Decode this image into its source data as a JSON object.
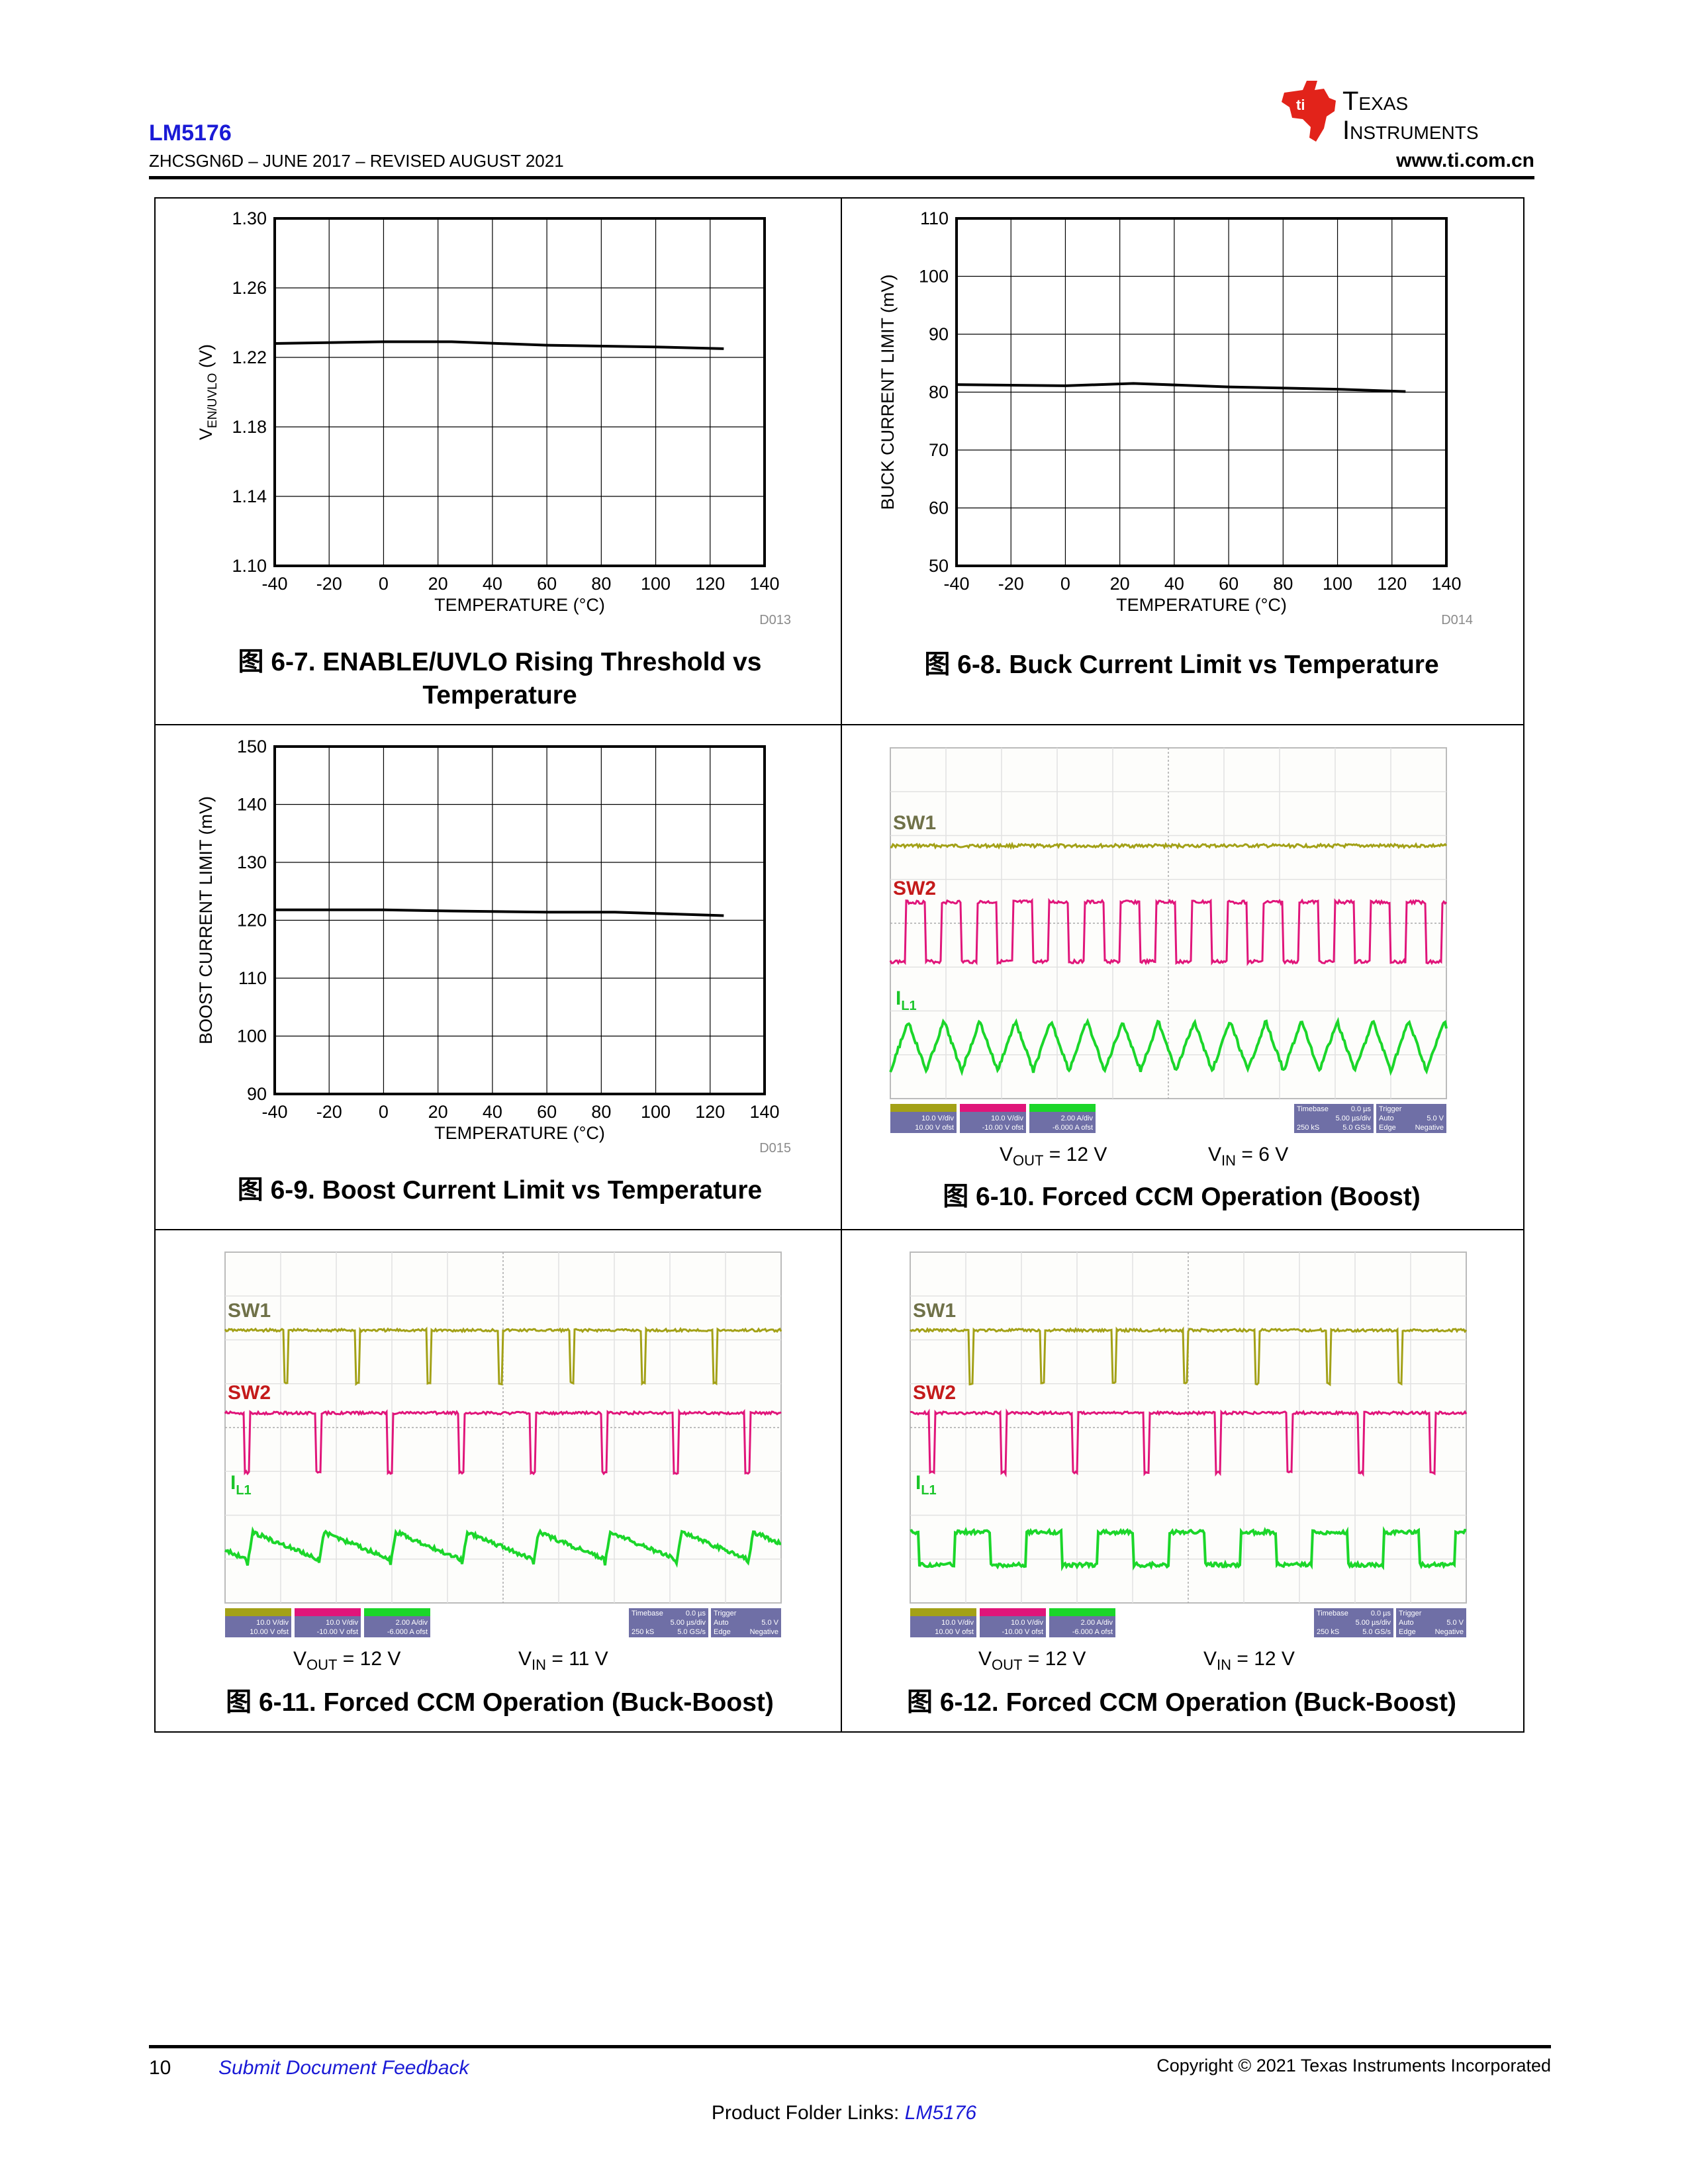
{
  "header": {
    "part_number": "LM5176",
    "doc_line": "ZHCSGN6D – JUNE 2017 – REVISED AUGUST 2021",
    "url": "www.ti.com.cn",
    "logo_text_1": "Texas",
    "logo_text_2": "Instruments"
  },
  "chart_data": [
    {
      "type": "line",
      "title": "图 6-7. ENABLE/UVLO Rising Threshold vs Temperature",
      "title_lines": [
        "图 6-7. ENABLE/UVLO Rising Threshold vs",
        "Temperature"
      ],
      "xlabel": "TEMPERATURE (°C)",
      "ylabel": "V",
      "ylabel_sub": "EN/UVLO",
      "ylabel_suffix": " (V)",
      "ref": "D013",
      "xlim": [
        -40,
        140
      ],
      "ylim": [
        1.1,
        1.3
      ],
      "xticks": [
        -40,
        -20,
        0,
        20,
        40,
        60,
        80,
        100,
        120,
        140
      ],
      "yticks": [
        "1.10",
        "1.14",
        "1.18",
        "1.22",
        "1.26",
        "1.30"
      ],
      "grid": true,
      "series": [
        {
          "x": [
            -40,
            0,
            25,
            60,
            100,
            125
          ],
          "y": [
            1.228,
            1.229,
            1.229,
            1.227,
            1.226,
            1.225
          ]
        }
      ]
    },
    {
      "type": "line",
      "title": "图 6-8. Buck Current Limit vs Temperature",
      "title_lines": [
        "图 6-8. Buck Current Limit vs Temperature"
      ],
      "xlabel": "TEMPERATURE (°C)",
      "ylabel": "BUCK CURRENT LIMIT (mV)",
      "ylabel_sub": "",
      "ylabel_suffix": "",
      "ref": "D014",
      "xlim": [
        -40,
        140
      ],
      "ylim": [
        50,
        110
      ],
      "xticks": [
        -40,
        -20,
        0,
        20,
        40,
        60,
        80,
        100,
        120,
        140
      ],
      "yticks": [
        "50",
        "60",
        "70",
        "80",
        "90",
        "100",
        "110"
      ],
      "grid": true,
      "series": [
        {
          "x": [
            -40,
            0,
            25,
            60,
            100,
            125
          ],
          "y": [
            81.3,
            81.1,
            81.5,
            80.9,
            80.5,
            80.1
          ]
        }
      ]
    },
    {
      "type": "line",
      "title": "图 6-9. Boost Current Limit vs Temperature",
      "title_lines": [
        "图 6-9. Boost Current Limit vs Temperature"
      ],
      "xlabel": "TEMPERATURE (°C)",
      "ylabel": "BOOST CURRENT LIMIT (mV)",
      "ylabel_sub": "",
      "ylabel_suffix": "",
      "ref": "D015",
      "xlim": [
        -40,
        140
      ],
      "ylim": [
        90,
        150
      ],
      "xticks": [
        -40,
        -20,
        0,
        20,
        40,
        60,
        80,
        100,
        120,
        140
      ],
      "yticks": [
        "90",
        "100",
        "110",
        "120",
        "130",
        "140",
        "150"
      ],
      "grid": true,
      "series": [
        {
          "x": [
            -40,
            0,
            25,
            60,
            85,
            125
          ],
          "y": [
            121.8,
            121.8,
            121.6,
            121.4,
            121.4,
            120.8
          ]
        }
      ]
    }
  ],
  "scope_shots": [
    {
      "title": "图 6-10. Forced CCM Operation (Boost)",
      "vout_value": " = 12 V",
      "vin_value": " = 6 V",
      "mode": "boost",
      "sw1_label": "SW1",
      "sw2_label": "SW2",
      "il_label": "I",
      "il_sub": "L1",
      "ch1": [
        "10.0 V/div",
        "10.00 V ofst"
      ],
      "ch2": [
        "10.0 V/div",
        "-10.00 V ofst"
      ],
      "ch4": [
        "2.00 A/div",
        "-6.000 A ofst"
      ],
      "timebase": [
        "Timebase",
        "0.0 µs",
        "5.00 µs/div",
        "250 kS",
        "5.0 GS/s"
      ],
      "trigger": [
        "Trigger",
        "Auto",
        "5.0 V",
        "Edge",
        "Negative"
      ]
    },
    {
      "title": "图 6-11. Forced CCM Operation (Buck-Boost)",
      "vout_value": " = 12 V",
      "vin_value": " = 11 V",
      "mode": "bb11",
      "sw1_label": "SW1",
      "sw2_label": "SW2",
      "il_label": "I",
      "il_sub": "L1",
      "ch1": [
        "10.0 V/div",
        "10.00 V ofst"
      ],
      "ch2": [
        "10.0 V/div",
        "-10.00 V ofst"
      ],
      "ch4": [
        "2.00 A/div",
        "-6.000 A ofst"
      ],
      "timebase": [
        "Timebase",
        "0.0 µs",
        "5.00 µs/div",
        "250 kS",
        "5.0 GS/s"
      ],
      "trigger": [
        "Trigger",
        "Auto",
        "5.0 V",
        "Edge",
        "Negative"
      ]
    },
    {
      "title": "图 6-12. Forced CCM Operation (Buck-Boost)",
      "vout_value": " = 12 V",
      "vin_value": " = 12 V",
      "mode": "bb12",
      "sw1_label": "SW1",
      "sw2_label": "SW2",
      "il_label": "I",
      "il_sub": "L1",
      "ch1": [
        "10.0 V/div",
        "10.00 V ofst"
      ],
      "ch2": [
        "10.0 V/div",
        "-10.00 V ofst"
      ],
      "ch4": [
        "2.00 A/div",
        "-6.000 A ofst"
      ],
      "timebase": [
        "Timebase",
        "0.0 µs",
        "5.00 µs/div",
        "250 kS",
        "5.0 GS/s"
      ],
      "trigger": [
        "Trigger",
        "Auto",
        "5.0 V",
        "Edge",
        "Negative"
      ]
    }
  ],
  "vout_label": "V",
  "vout_sub": "OUT",
  "vin_label": "V",
  "vin_sub": "IN",
  "footer": {
    "page": "10",
    "feedback": "Submit Document Feedback",
    "copyright": "Copyright © 2021 Texas Instruments Incorporated",
    "folder_label": "Product Folder Links: ",
    "folder_link": "LM5176"
  },
  "colors": {
    "sw1": "#a3a117",
    "sw2": "#e0157a",
    "il": "#1bd62a",
    "sw1_label": "#6f7148",
    "sw2_label": "#c41a1a",
    "il_label": "#1bc52a",
    "link": "#1a1ad6",
    "ti_red": "#e2231a"
  }
}
